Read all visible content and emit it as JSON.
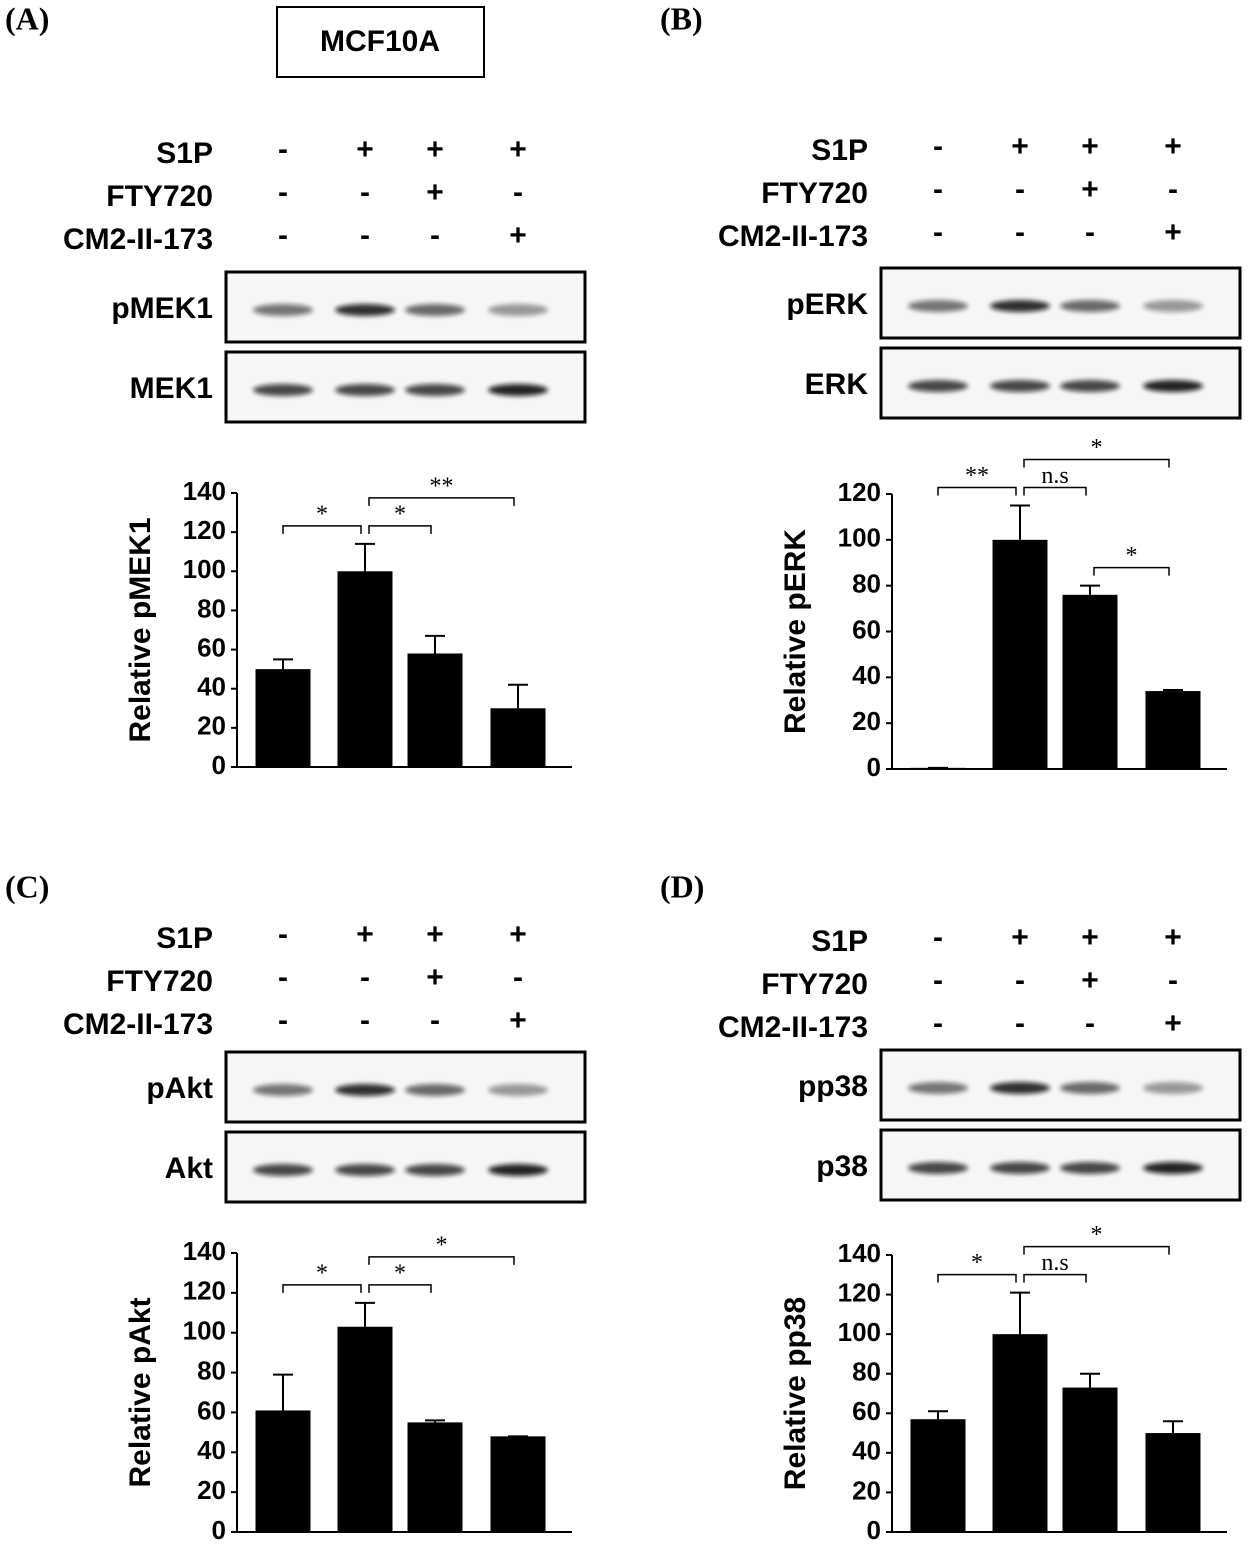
{
  "cell_line": "MCF10A",
  "chart_data": [
    {
      "type": "bar",
      "panel": "(A)",
      "treatments": [
        {
          "name": "S1P",
          "marks": [
            "-",
            "+",
            "+",
            "+"
          ]
        },
        {
          "name": "FTY720",
          "marks": [
            "-",
            "-",
            "+",
            "-"
          ]
        },
        {
          "name": "CM2-II-173",
          "marks": [
            "-",
            "-",
            "-",
            "+"
          ]
        }
      ],
      "blots": [
        "pMEK1",
        "MEK1"
      ],
      "ylabel": "Relative pMEK1",
      "values": [
        50,
        100,
        58,
        30
      ],
      "errors": [
        5,
        14,
        9,
        12
      ],
      "color": "#000000",
      "ylim": [
        0,
        140
      ],
      "yticks": [
        0,
        20,
        40,
        60,
        80,
        100,
        120,
        140
      ],
      "annotations": [
        {
          "text": "*",
          "from": 0,
          "to": 1
        },
        {
          "text": "*",
          "from": 1,
          "to": 2
        },
        {
          "text": "**",
          "from": 1,
          "to": 3
        }
      ]
    },
    {
      "type": "bar",
      "panel": "(B)",
      "treatments": [
        {
          "name": "S1P",
          "marks": [
            "-",
            "+",
            "+",
            "+"
          ]
        },
        {
          "name": "FTY720",
          "marks": [
            "-",
            "-",
            "+",
            "-"
          ]
        },
        {
          "name": "CM2-II-173",
          "marks": [
            "-",
            "-",
            "-",
            "+"
          ]
        }
      ],
      "blots": [
        "pERK",
        "ERK"
      ],
      "ylabel": "Relative pERK",
      "values": [
        0.5,
        100,
        76,
        34
      ],
      "errors": [
        0,
        15,
        4,
        0.5
      ],
      "color": "#000000",
      "ylim": [
        0,
        120
      ],
      "yticks": [
        0,
        20,
        40,
        60,
        80,
        100,
        120
      ],
      "annotations": [
        {
          "text": "**",
          "from": 0,
          "to": 1
        },
        {
          "text": "n.s",
          "from": 1,
          "to": 2
        },
        {
          "text": "*",
          "from": 1,
          "to": 3
        },
        {
          "text": "*",
          "from": 2,
          "to": 3
        }
      ]
    },
    {
      "type": "bar",
      "panel": "(C)",
      "treatments": [
        {
          "name": "S1P",
          "marks": [
            "-",
            "+",
            "+",
            "+"
          ]
        },
        {
          "name": "FTY720",
          "marks": [
            "-",
            "-",
            "+",
            "-"
          ]
        },
        {
          "name": "CM2-II-173",
          "marks": [
            "-",
            "-",
            "-",
            "+"
          ]
        }
      ],
      "blots": [
        "pAkt",
        "Akt"
      ],
      "ylabel": "Relative pAkt",
      "values": [
        61,
        103,
        55,
        48
      ],
      "errors": [
        18,
        12,
        1,
        0
      ],
      "color": "#000000",
      "ylim": [
        0,
        140
      ],
      "yticks": [
        0,
        20,
        40,
        60,
        80,
        100,
        120,
        140
      ],
      "annotations": [
        {
          "text": "*",
          "from": 0,
          "to": 1
        },
        {
          "text": "*",
          "from": 1,
          "to": 2
        },
        {
          "text": "*",
          "from": 1,
          "to": 3
        }
      ]
    },
    {
      "type": "bar",
      "panel": "(D)",
      "treatments": [
        {
          "name": "S1P",
          "marks": [
            "-",
            "+",
            "+",
            "+"
          ]
        },
        {
          "name": "FTY720",
          "marks": [
            "-",
            "-",
            "+",
            "-"
          ]
        },
        {
          "name": "CM2-II-173",
          "marks": [
            "-",
            "-",
            "-",
            "+"
          ]
        }
      ],
      "blots": [
        "pp38",
        "p38"
      ],
      "ylabel": "Relative pp38",
      "values": [
        57,
        100,
        73,
        50
      ],
      "errors": [
        4,
        21,
        7,
        6
      ],
      "color": "#000000",
      "ylim": [
        0,
        140
      ],
      "yticks": [
        0,
        20,
        40,
        60,
        80,
        100,
        120,
        140
      ],
      "annotations": [
        {
          "text": "*",
          "from": 0,
          "to": 1
        },
        {
          "text": "n.s",
          "from": 1,
          "to": 2
        },
        {
          "text": "*",
          "from": 1,
          "to": 3
        }
      ]
    }
  ]
}
